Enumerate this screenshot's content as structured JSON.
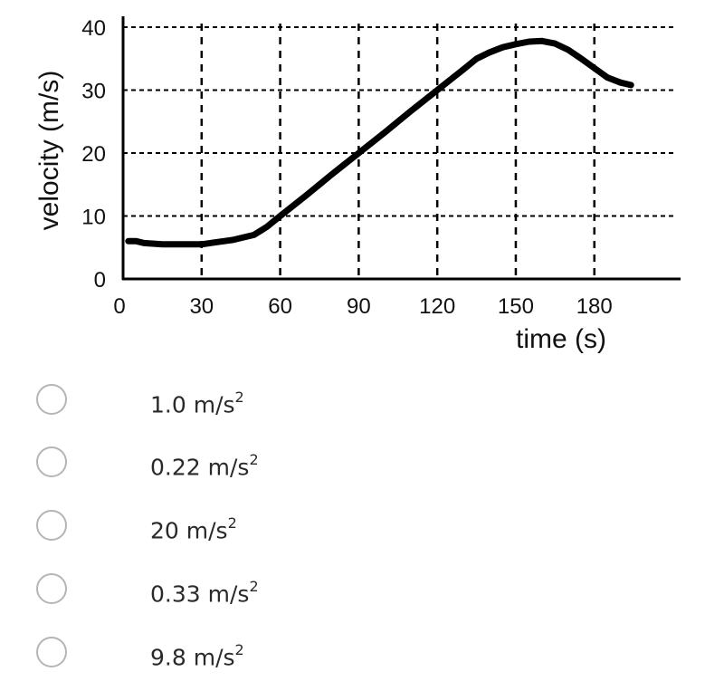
{
  "chart_data": {
    "type": "line",
    "title": "",
    "xlabel": "time (s)",
    "ylabel": "velocity (m/s)",
    "xlim": [
      0,
      210
    ],
    "ylim": [
      0,
      40
    ],
    "xticks": [
      0,
      30,
      60,
      90,
      120,
      150,
      180
    ],
    "yticks": [
      0,
      10,
      20,
      30,
      40
    ],
    "grid": true,
    "grid_style": "dashed",
    "series": [
      {
        "color": "#000000",
        "points": [
          [
            2,
            6
          ],
          [
            5,
            6
          ],
          [
            8,
            5.7
          ],
          [
            15,
            5.5
          ],
          [
            22,
            5.5
          ],
          [
            30,
            5.5
          ],
          [
            35,
            5.8
          ],
          [
            42,
            6.2
          ],
          [
            50,
            7
          ],
          [
            55,
            8.3
          ],
          [
            60,
            10
          ],
          [
            70,
            13.3
          ],
          [
            80,
            16.7
          ],
          [
            90,
            20
          ],
          [
            100,
            23.3
          ],
          [
            110,
            26.7
          ],
          [
            120,
            30
          ],
          [
            130,
            33.3
          ],
          [
            135,
            35
          ],
          [
            140,
            36
          ],
          [
            145,
            36.8
          ],
          [
            150,
            37.3
          ],
          [
            155,
            37.7
          ],
          [
            160,
            37.8
          ],
          [
            165,
            37.4
          ],
          [
            170,
            36.4
          ],
          [
            175,
            35
          ],
          [
            180,
            33.5
          ],
          [
            185,
            32
          ],
          [
            190,
            31.2
          ],
          [
            194,
            30.8
          ]
        ]
      }
    ]
  },
  "question": {
    "options": [
      {
        "value": "1.0",
        "unit": "m/s",
        "exp": "2"
      },
      {
        "value": "0.22",
        "unit": "m/s",
        "exp": "2"
      },
      {
        "value": "20",
        "unit": "m/s",
        "exp": "2"
      },
      {
        "value": "0.33",
        "unit": "m/s",
        "exp": "2"
      },
      {
        "value": "9.8",
        "unit": "m/s",
        "exp": "2"
      }
    ]
  }
}
